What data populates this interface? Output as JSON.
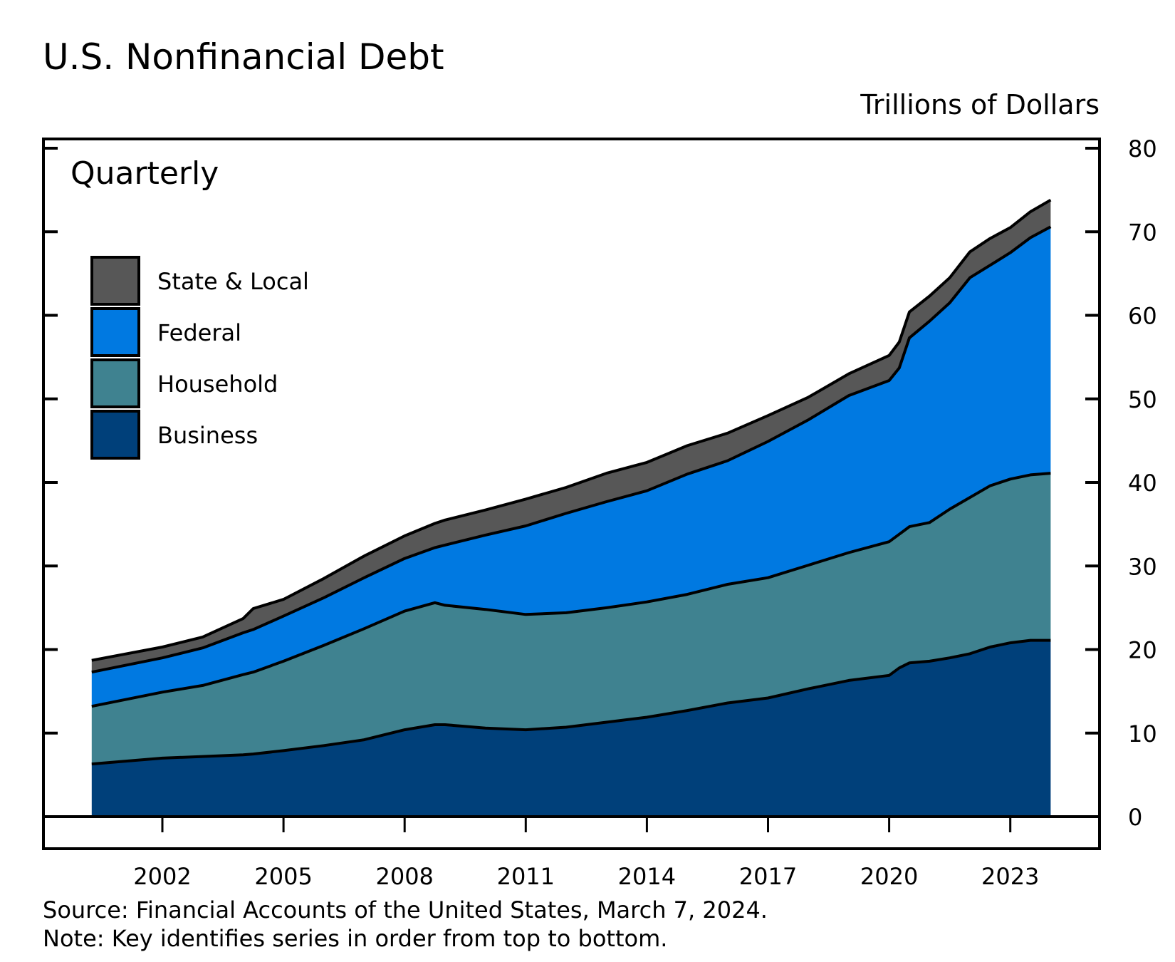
{
  "chart_data": {
    "type": "area",
    "stacked": true,
    "title": "U.S. Nonfinancial Debt",
    "ylabel": "Trillions of Dollars",
    "annotation": "Quarterly",
    "frequency": "quarterly",
    "ylim": [
      0,
      80
    ],
    "yticks": [
      0,
      10,
      20,
      30,
      40,
      50,
      60,
      70,
      80
    ],
    "xticks": [
      "2002",
      "2005",
      "2008",
      "2011",
      "2014",
      "2017",
      "2020",
      "2023"
    ],
    "xlim": [
      1999,
      2026
    ],
    "y_axis_side": "right",
    "grid": false,
    "legend_placement": "top-left",
    "legend": [
      "State & Local",
      "Federal",
      "Household",
      "Business"
    ],
    "x": [
      "2000Q1",
      "2001Q4",
      "2002Q4",
      "2003Q4",
      "2004Q1",
      "2004Q4",
      "2005Q4",
      "2006Q4",
      "2007Q4",
      "2008Q3",
      "2008Q4",
      "2009Q4",
      "2010Q4",
      "2011Q4",
      "2012Q4",
      "2013Q4",
      "2014Q4",
      "2015Q4",
      "2016Q4",
      "2017Q4",
      "2018Q4",
      "2019Q4",
      "2020Q1",
      "2020Q2",
      "2020Q4",
      "2021Q2",
      "2021Q4",
      "2022Q2",
      "2022Q4",
      "2023Q2",
      "2023Q4"
    ],
    "series": [
      {
        "name": "Business",
        "color": "#00407a",
        "values": [
          6.3,
          7.0,
          7.2,
          7.4,
          7.5,
          7.9,
          8.5,
          9.2,
          10.4,
          11.0,
          11.0,
          10.6,
          10.4,
          10.7,
          11.3,
          11.9,
          12.7,
          13.6,
          14.2,
          15.3,
          16.3,
          16.9,
          17.8,
          18.4,
          18.6,
          19.0,
          19.5,
          20.3,
          20.8,
          21.1,
          21.1
        ]
      },
      {
        "name": "Household",
        "color": "#3f8290",
        "values": [
          6.9,
          7.9,
          8.5,
          9.6,
          9.8,
          10.7,
          12.0,
          13.3,
          14.2,
          14.6,
          14.3,
          14.2,
          13.8,
          13.7,
          13.7,
          13.8,
          13.9,
          14.2,
          14.4,
          14.8,
          15.3,
          16.0,
          16.0,
          16.3,
          16.6,
          17.8,
          18.7,
          19.3,
          19.6,
          19.8,
          20.0
        ]
      },
      {
        "name": "Federal",
        "color": "#0079e1",
        "values": [
          4.1,
          4.1,
          4.5,
          5.0,
          5.1,
          5.4,
          5.7,
          6.1,
          6.3,
          6.6,
          7.2,
          8.9,
          10.6,
          11.9,
          12.7,
          13.3,
          14.4,
          14.8,
          16.3,
          17.4,
          18.8,
          19.3,
          19.9,
          22.6,
          24.1,
          24.7,
          26.3,
          26.4,
          27.1,
          28.4,
          29.5
        ]
      },
      {
        "name": "State & Local",
        "color": "#575757",
        "values": [
          1.4,
          1.3,
          1.3,
          1.7,
          2.5,
          2.0,
          2.3,
          2.6,
          2.7,
          2.9,
          3.0,
          3.0,
          3.2,
          3.1,
          3.4,
          3.4,
          3.4,
          3.3,
          3.1,
          2.7,
          2.6,
          3.0,
          3.1,
          3.1,
          3.0,
          3.0,
          3.1,
          3.2,
          3.0,
          3.1,
          3.2
        ]
      }
    ]
  },
  "footer": {
    "source": "Source: Financial Accounts of the United States, March 7, 2024.",
    "note": "Note: Key identifies series in order from top to bottom."
  }
}
